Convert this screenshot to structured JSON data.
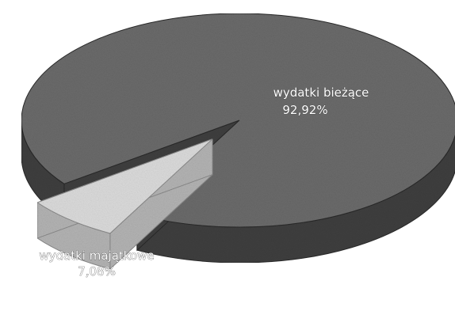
{
  "chart_data": {
    "type": "pie",
    "title": "",
    "labels": [
      "wydatki bieżące",
      "wydatki majątkowe"
    ],
    "values": [
      92.92,
      7.08
    ],
    "value_labels": [
      "92,92%",
      "7,08%"
    ],
    "exploded": [
      false,
      true
    ],
    "three_d": true,
    "colors": {
      "top": [
        "#6b6b6b",
        "#dcdcdc"
      ],
      "side": [
        "#3f3f3f",
        "#b4b4b4"
      ],
      "edge": [
        "#2a2a2a",
        "#8a8a8a"
      ]
    }
  }
}
